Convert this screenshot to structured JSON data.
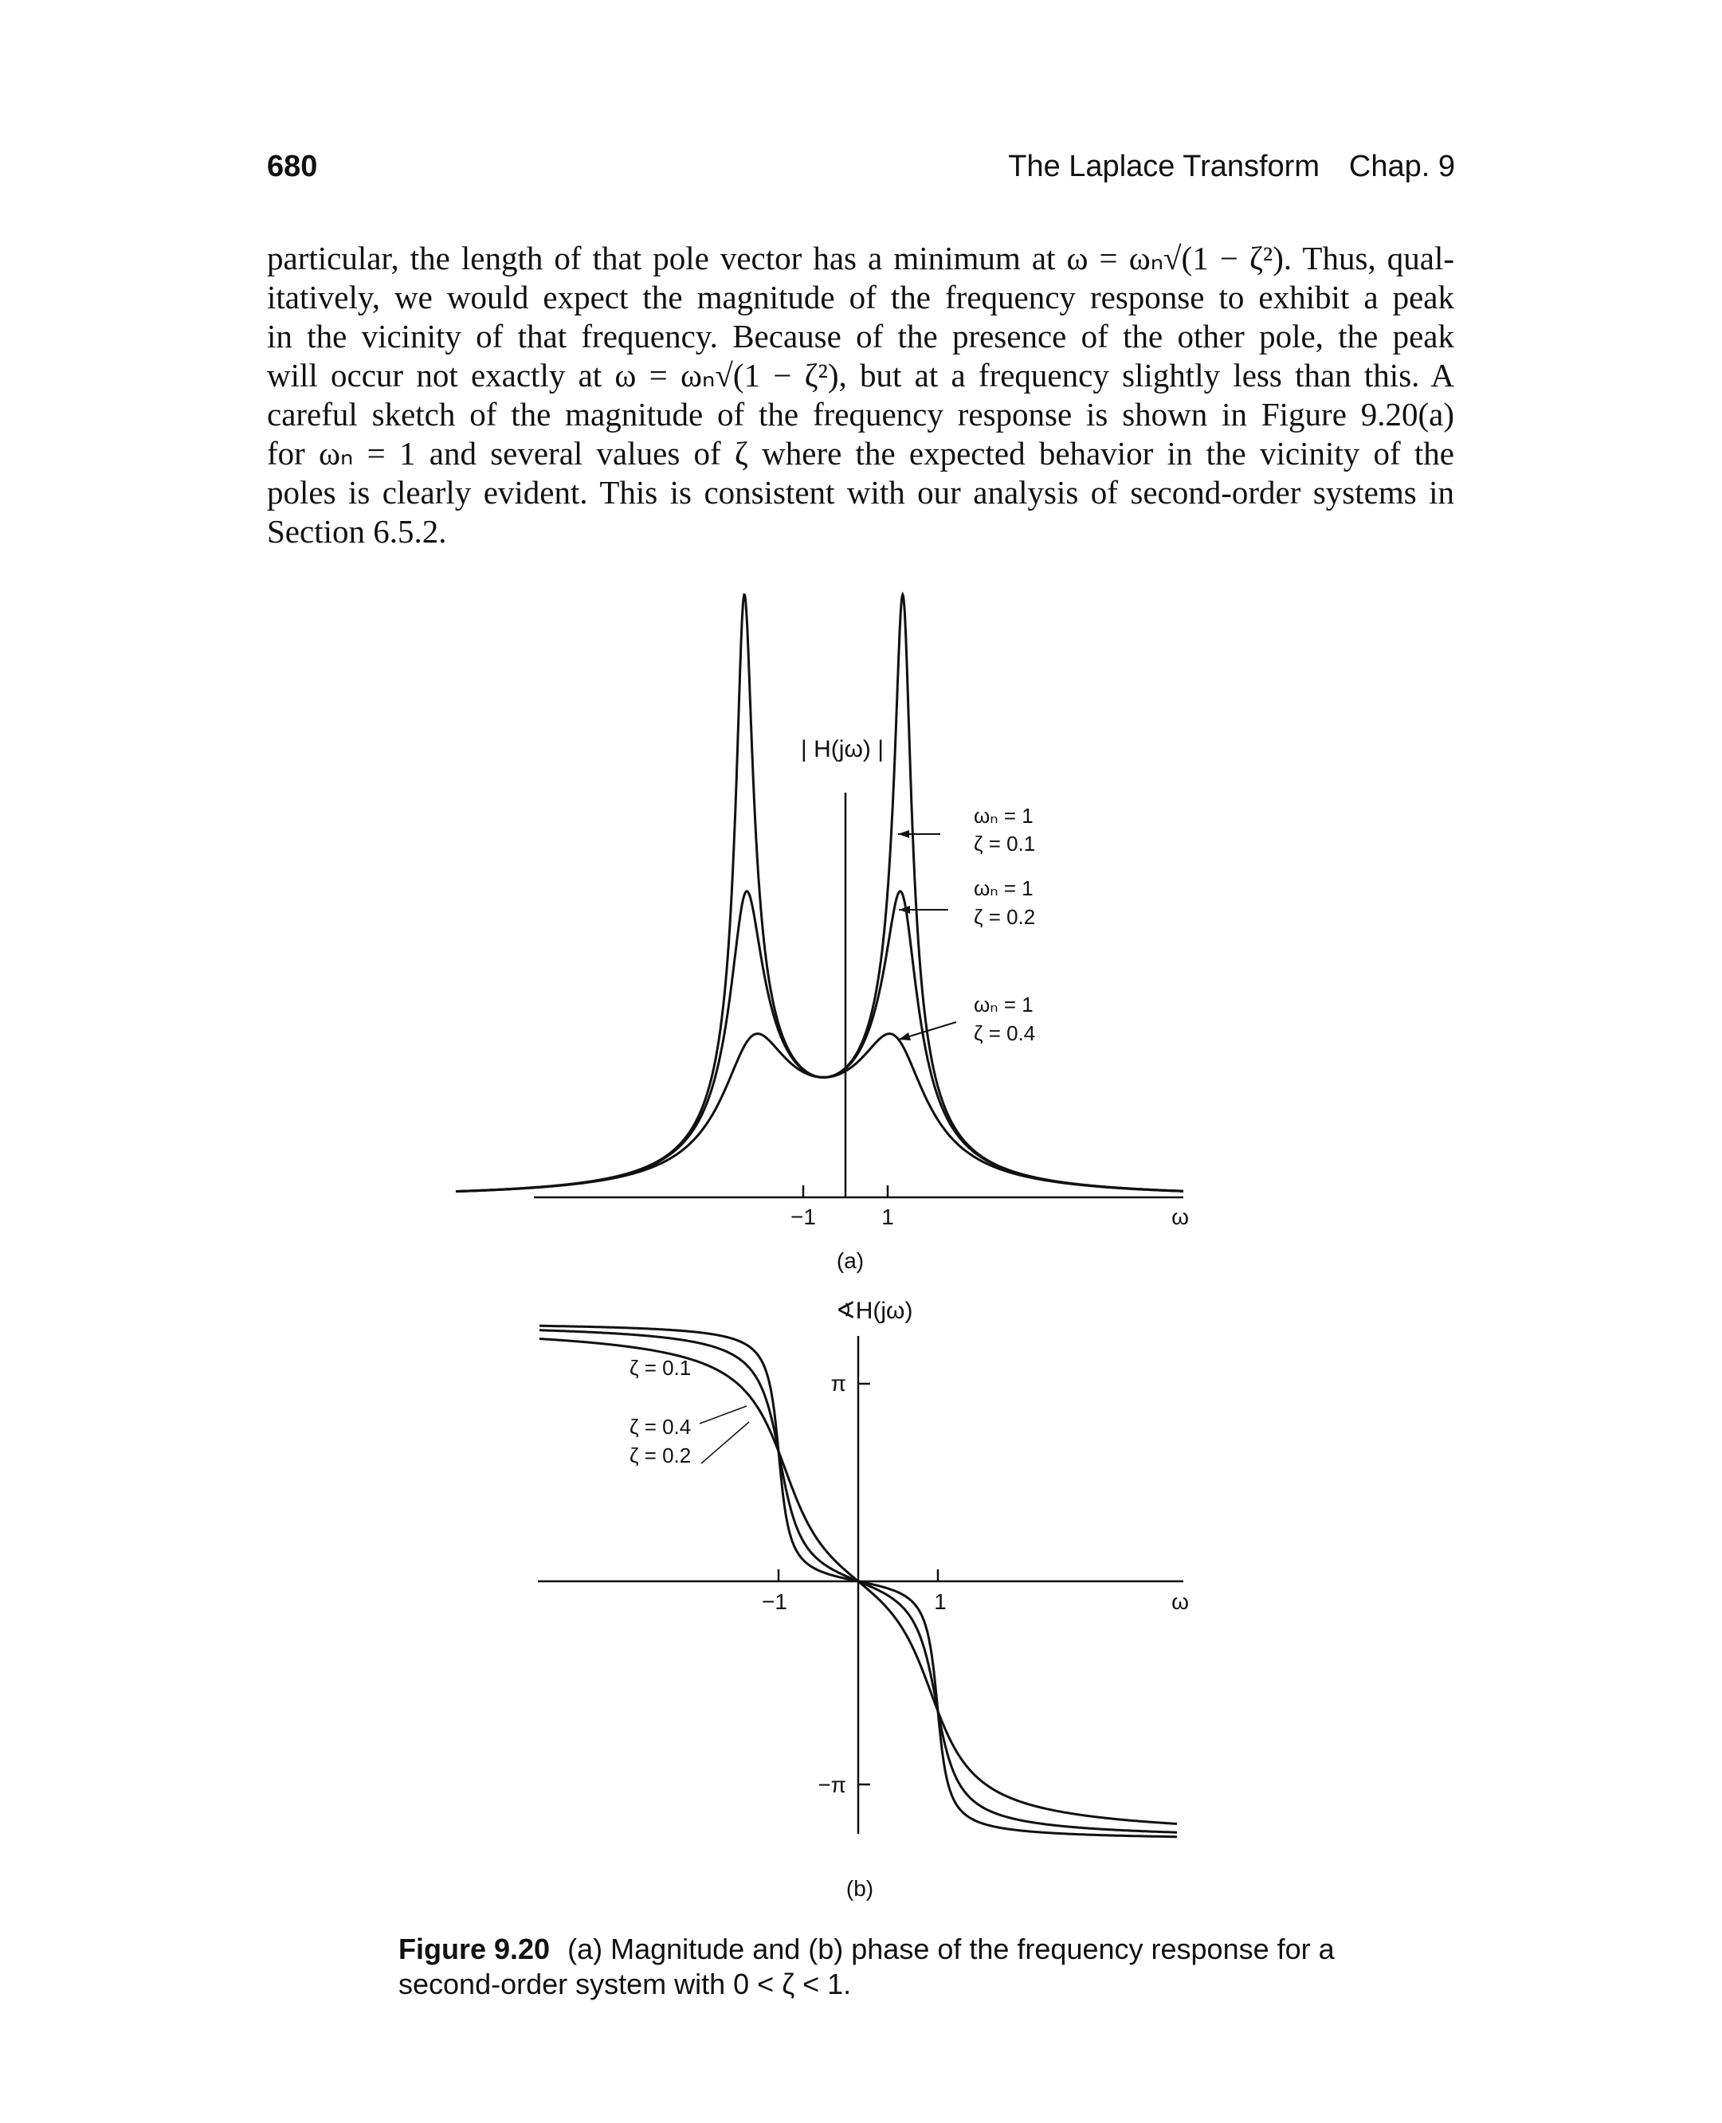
{
  "header": {
    "page_number": "680",
    "running_title": "The Laplace Transform",
    "chapter": "Chap. 9"
  },
  "body": {
    "lines": [
      "particular, the length of that pole vector has a minimum at ω = ωₙ√(1 − ζ²). Thus, qual-",
      "itatively, we would expect the magnitude of the frequency response to exhibit a peak",
      "in the vicinity of that frequency. Because of the presence of the other pole, the peak",
      "will occur not exactly at ω = ωₙ√(1 − ζ²), but at a frequency slightly less than this. A",
      "careful sketch of the magnitude of the frequency response is shown in Figure 9.20(a)",
      "for ωₙ = 1 and several values of ζ where the expected behavior in the vicinity of the",
      "poles is clearly evident. This is consistent with our analysis of second-order systems in",
      "Section 6.5.2."
    ]
  },
  "figure_a": {
    "panel_label": "(a)",
    "y_label": "| H(jω) |",
    "x_label": "ω",
    "ticks": [
      "−1",
      "1"
    ],
    "annotations": [
      {
        "wn": "ωₙ = 1",
        "zeta": "ζ = 0.1"
      },
      {
        "wn": "ωₙ = 1",
        "zeta": "ζ = 0.2"
      },
      {
        "wn": "ωₙ = 1",
        "zeta": "ζ = 0.4"
      }
    ]
  },
  "figure_b": {
    "panel_label": "(b)",
    "y_label": "∢H(jω)",
    "x_label": "ω",
    "ticks": [
      "−1",
      "1"
    ],
    "y_ticks": [
      "π",
      "−π"
    ],
    "legend": [
      "ζ = 0.1",
      "ζ = 0.4",
      "ζ = 0.2"
    ]
  },
  "caption": {
    "label": "Figure 9.20",
    "text": "(a) Magnitude and (b) phase of the frequency response for a second-order system with 0 < ζ < 1."
  },
  "chart_data": [
    {
      "type": "line",
      "title": "(a)",
      "ylabel": "| H(jω) |",
      "xlabel": "ω",
      "wn": 1,
      "series": [
        {
          "name": "ζ = 0.1",
          "zeta": 0.1
        },
        {
          "name": "ζ = 0.2",
          "zeta": 0.2
        },
        {
          "name": "ζ = 0.4",
          "zeta": 0.4
        }
      ],
      "xlim": [
        -4.6,
        4.5
      ],
      "ylim": [
        0,
        5.2
      ],
      "x_ticks": [
        -1,
        1
      ],
      "grid": false
    },
    {
      "type": "line",
      "title": "(b)",
      "ylabel": "∢H(jω)",
      "xlabel": "ω",
      "wn": 1,
      "series": [
        {
          "name": "ζ = 0.1",
          "zeta": 0.1
        },
        {
          "name": "ζ = 0.2",
          "zeta": 0.2
        },
        {
          "name": "ζ = 0.4",
          "zeta": 0.4
        }
      ],
      "xlim": [
        -4.0,
        4.0
      ],
      "ylim": [
        -3.9,
        3.9
      ],
      "x_ticks": [
        -1,
        1
      ],
      "y_ticks": [
        3.14159,
        -3.14159
      ],
      "grid": false
    }
  ]
}
